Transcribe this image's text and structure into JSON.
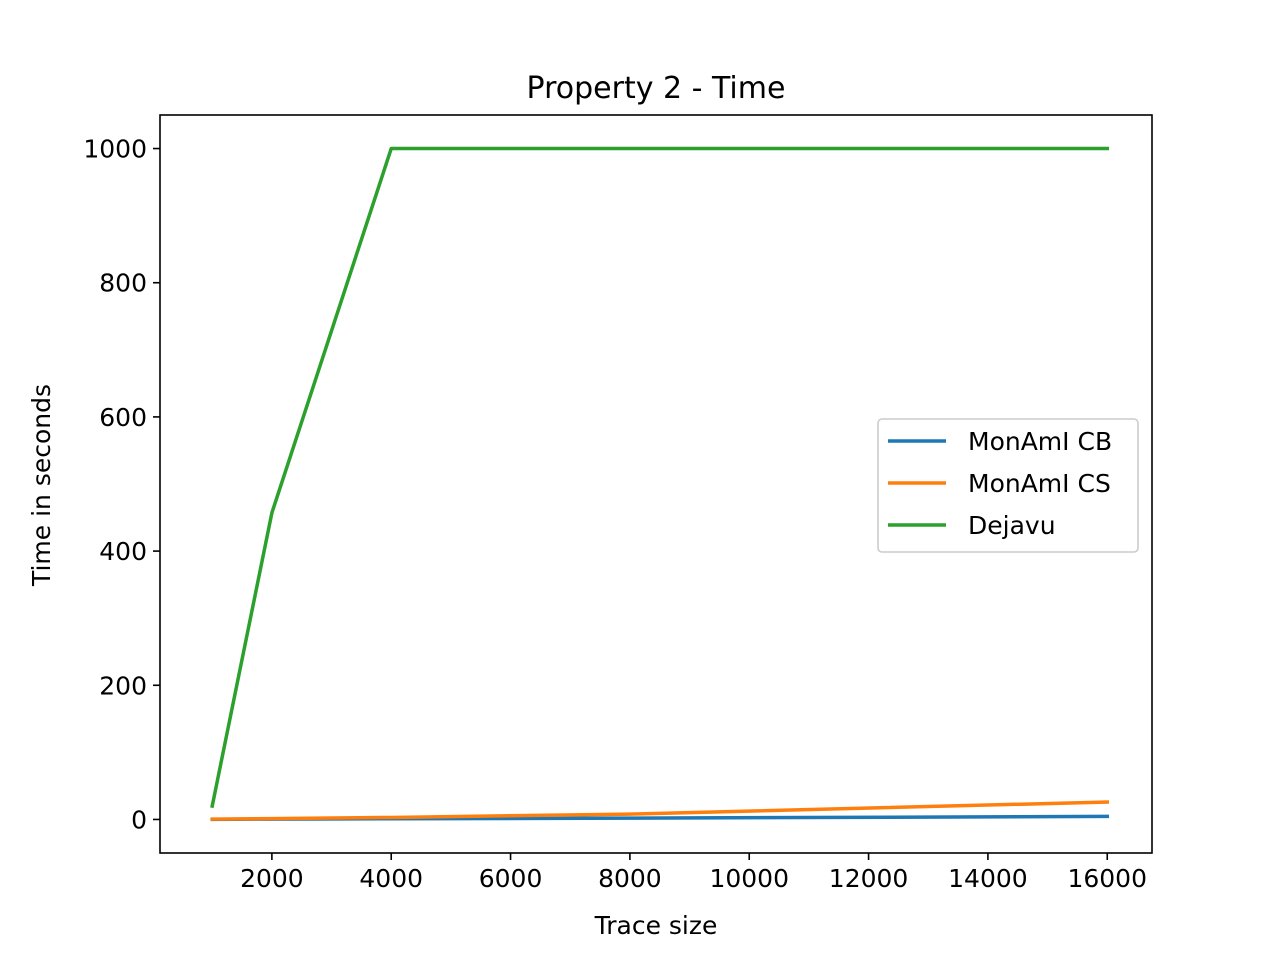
{
  "chart_data": {
    "type": "line",
    "title": "Property 2 - Time",
    "xlabel": "Trace size",
    "ylabel": "Time in seconds",
    "xlim": [
      125,
      16750
    ],
    "ylim": [
      -50,
      1050
    ],
    "x_ticks": [
      2000,
      4000,
      6000,
      8000,
      10000,
      12000,
      14000,
      16000
    ],
    "y_ticks": [
      0,
      200,
      400,
      600,
      800,
      1000
    ],
    "grid": false,
    "legend_position": "center-right",
    "series": [
      {
        "name": "MonAmI CB",
        "color": "#1f77b4",
        "x": [
          1000,
          2000,
          4000,
          8000,
          16000
        ],
        "y": [
          0.2,
          0.5,
          1.0,
          2.0,
          4.5
        ]
      },
      {
        "name": "MonAmI CS",
        "color": "#ff7f0e",
        "x": [
          1000,
          2000,
          4000,
          8000,
          16000
        ],
        "y": [
          0.5,
          1.2,
          3.0,
          8.0,
          26.0
        ]
      },
      {
        "name": "Dejavu",
        "color": "#2ca02c",
        "x": [
          1000,
          2000,
          4000,
          8000,
          16000
        ],
        "y": [
          20,
          457,
          1000,
          1000,
          1000
        ]
      }
    ]
  }
}
